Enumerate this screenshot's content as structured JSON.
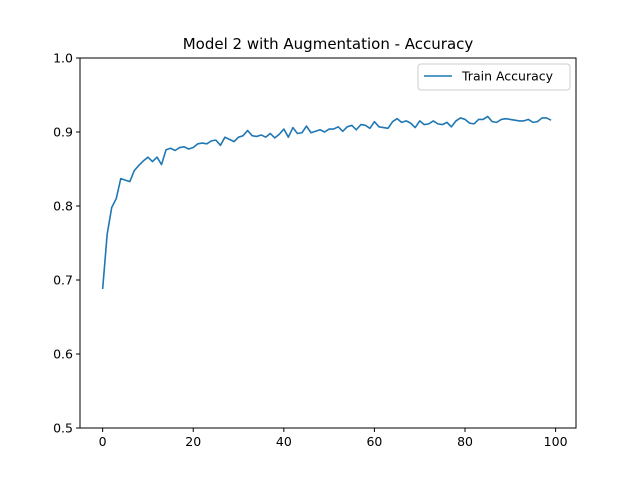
{
  "chart_data": {
    "type": "line",
    "title": "Model 2 with Augmentation - Accuracy",
    "xlabel": "",
    "ylabel": "",
    "xlim": [
      -5,
      104.5
    ],
    "ylim": [
      0.5,
      1.0
    ],
    "xticks": [
      0,
      20,
      40,
      60,
      80,
      100
    ],
    "yticks": [
      0.5,
      0.6,
      0.7,
      0.8,
      0.9,
      1.0
    ],
    "xtick_labels": [
      "0",
      "20",
      "40",
      "60",
      "80",
      "100"
    ],
    "ytick_labels": [
      "0.5",
      "0.6",
      "0.7",
      "0.8",
      "0.9",
      "1.0"
    ],
    "grid": false,
    "legend_position": "upper right",
    "series": [
      {
        "name": "Train Accuracy",
        "color": "#1f77b4",
        "x": [
          0,
          1,
          2,
          3,
          4,
          5,
          6,
          7,
          8,
          9,
          10,
          11,
          12,
          13,
          14,
          15,
          16,
          17,
          18,
          19,
          20,
          21,
          22,
          23,
          24,
          25,
          26,
          27,
          28,
          29,
          30,
          31,
          32,
          33,
          34,
          35,
          36,
          37,
          38,
          39,
          40,
          41,
          42,
          43,
          44,
          45,
          46,
          47,
          48,
          49,
          50,
          51,
          52,
          53,
          54,
          55,
          56,
          57,
          58,
          59,
          60,
          61,
          62,
          63,
          64,
          65,
          66,
          67,
          68,
          69,
          70,
          71,
          72,
          73,
          74,
          75,
          76,
          77,
          78,
          79,
          80,
          81,
          82,
          83,
          84,
          85,
          86,
          87,
          88,
          89,
          90,
          91,
          92,
          93,
          94,
          95,
          96,
          97,
          98,
          99
        ],
        "values": [
          0.688,
          0.762,
          0.798,
          0.81,
          0.837,
          0.835,
          0.833,
          0.848,
          0.855,
          0.861,
          0.866,
          0.86,
          0.866,
          0.856,
          0.876,
          0.878,
          0.875,
          0.879,
          0.88,
          0.877,
          0.879,
          0.884,
          0.885,
          0.884,
          0.888,
          0.889,
          0.882,
          0.893,
          0.89,
          0.887,
          0.893,
          0.895,
          0.902,
          0.895,
          0.894,
          0.896,
          0.893,
          0.898,
          0.892,
          0.897,
          0.904,
          0.893,
          0.906,
          0.898,
          0.899,
          0.908,
          0.899,
          0.901,
          0.903,
          0.9,
          0.904,
          0.904,
          0.907,
          0.901,
          0.907,
          0.909,
          0.903,
          0.91,
          0.909,
          0.905,
          0.914,
          0.907,
          0.906,
          0.905,
          0.914,
          0.918,
          0.913,
          0.915,
          0.912,
          0.906,
          0.915,
          0.91,
          0.911,
          0.915,
          0.911,
          0.91,
          0.913,
          0.907,
          0.915,
          0.919,
          0.917,
          0.912,
          0.911,
          0.917,
          0.917,
          0.921,
          0.914,
          0.913,
          0.917,
          0.918,
          0.917,
          0.916,
          0.915,
          0.915,
          0.917,
          0.913,
          0.914,
          0.919,
          0.919,
          0.916
        ]
      }
    ]
  }
}
